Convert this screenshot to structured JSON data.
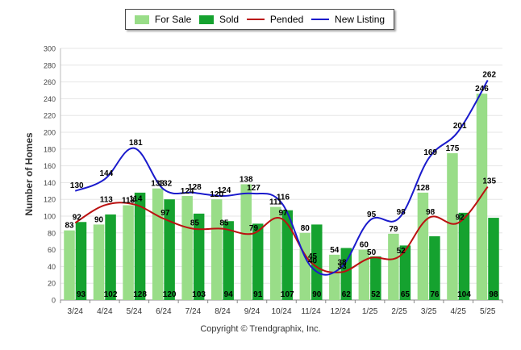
{
  "chart_data": {
    "type": "bar",
    "y_axis_title": "Number of Homes",
    "ylim": [
      0,
      300
    ],
    "y_ticks": [
      0,
      20,
      40,
      60,
      80,
      100,
      120,
      140,
      160,
      180,
      200,
      220,
      240,
      260,
      280,
      300
    ],
    "grid": true,
    "legend_position": "top-center",
    "categories": [
      "3/24",
      "4/24",
      "5/24",
      "6/24",
      "7/24",
      "8/24",
      "9/24",
      "10/24",
      "11/24",
      "12/24",
      "1/25",
      "2/25",
      "3/25",
      "4/25",
      "5/25"
    ],
    "series": [
      {
        "name": "For Sale",
        "kind": "bar",
        "color": "#99dd88",
        "values": [
          83,
          90,
          113,
          133,
          124,
          120,
          138,
          111,
          80,
          54,
          60,
          79,
          128,
          175,
          246
        ]
      },
      {
        "name": "Sold",
        "kind": "bar",
        "color": "#15a22f",
        "values": [
          93,
          102,
          128,
          120,
          103,
          94,
          91,
          107,
          90,
          62,
          52,
          65,
          76,
          104,
          98
        ]
      },
      {
        "name": "Pended",
        "kind": "line",
        "color": "#bb1111",
        "values": [
          92,
          113,
          114,
          97,
          85,
          85,
          79,
          97,
          45,
          33,
          50,
          52,
          98,
          92,
          135
        ]
      },
      {
        "name": "New Listing",
        "kind": "line",
        "color": "#1a1acc",
        "values": [
          130,
          144,
          181,
          132,
          128,
          124,
          127,
          116,
          40,
          38,
          95,
          98,
          169,
          201,
          262
        ]
      }
    ]
  },
  "copyright": "Copyright © Trendgraphix, Inc."
}
